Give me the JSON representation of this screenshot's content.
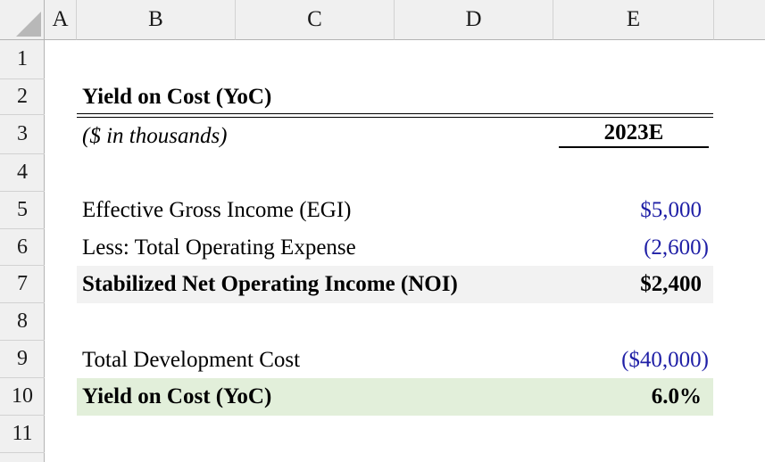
{
  "columns": [
    "A",
    "B",
    "C",
    "D",
    "E"
  ],
  "rows": [
    "1",
    "2",
    "3",
    "4",
    "5",
    "6",
    "7",
    "8",
    "9",
    "10",
    "11"
  ],
  "sheet": {
    "title": "Yield on Cost (YoC)",
    "subtitle": "($ in thousands)",
    "period_header": "2023E",
    "lines": [
      {
        "label": "Effective Gross Income (EGI)",
        "value": "$5,000"
      },
      {
        "label": "Less: Total Operating Expense",
        "value": "(2,600)"
      },
      {
        "label": "Stabilized Net Operating Income (NOI)",
        "value": "$2,400"
      },
      {
        "label": "Total Development Cost",
        "value": "($40,000)"
      },
      {
        "label": "Yield on Cost (YoC)",
        "value": "6.0%"
      }
    ]
  },
  "colors": {
    "input_blue": "#1f1fa6",
    "noi_band": "#f2f2f2",
    "yoc_band": "#e2efda"
  }
}
